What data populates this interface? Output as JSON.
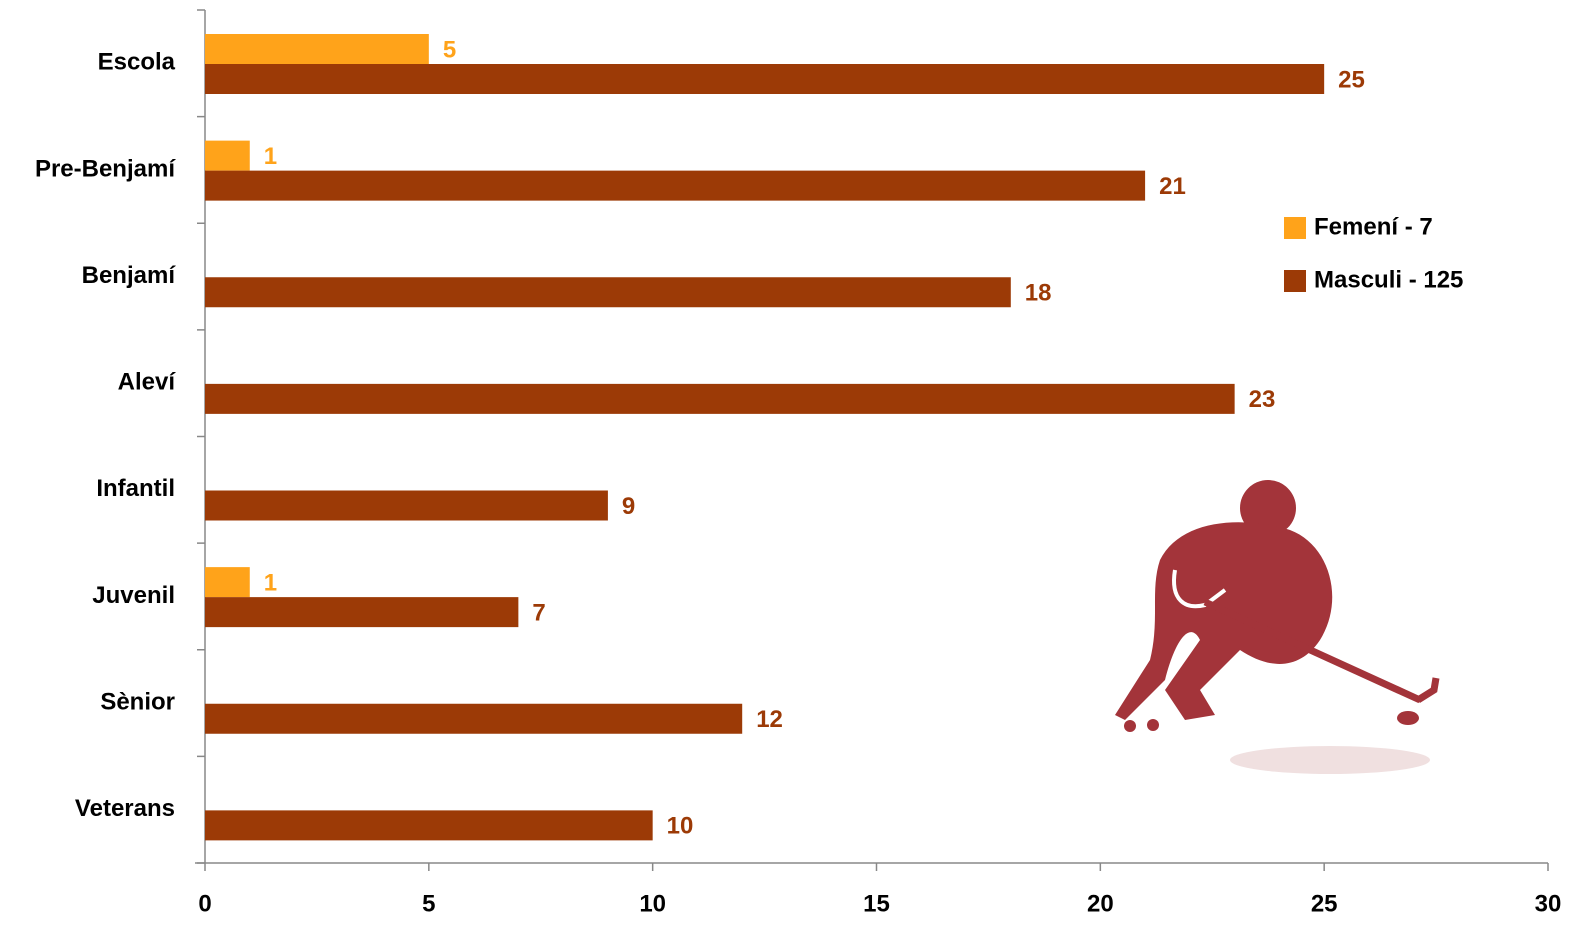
{
  "chart_data": {
    "type": "bar",
    "orientation": "horizontal",
    "categories": [
      "Escola",
      "Pre-Benjamí",
      "Benjamí",
      "Aleví",
      "Infantil",
      "Juvenil",
      "Sènior",
      "Veterans"
    ],
    "series": [
      {
        "name": "Femení - 7",
        "color": "#FFA31A",
        "values": [
          5,
          1,
          null,
          null,
          null,
          1,
          null,
          null
        ]
      },
      {
        "name": "Masculi - 125",
        "color": "#9C3A06",
        "values": [
          25,
          21,
          18,
          23,
          9,
          7,
          12,
          10
        ]
      }
    ],
    "xlim": [
      0,
      30
    ],
    "xticks": [
      0,
      5,
      10,
      15,
      20,
      25,
      30
    ]
  }
}
